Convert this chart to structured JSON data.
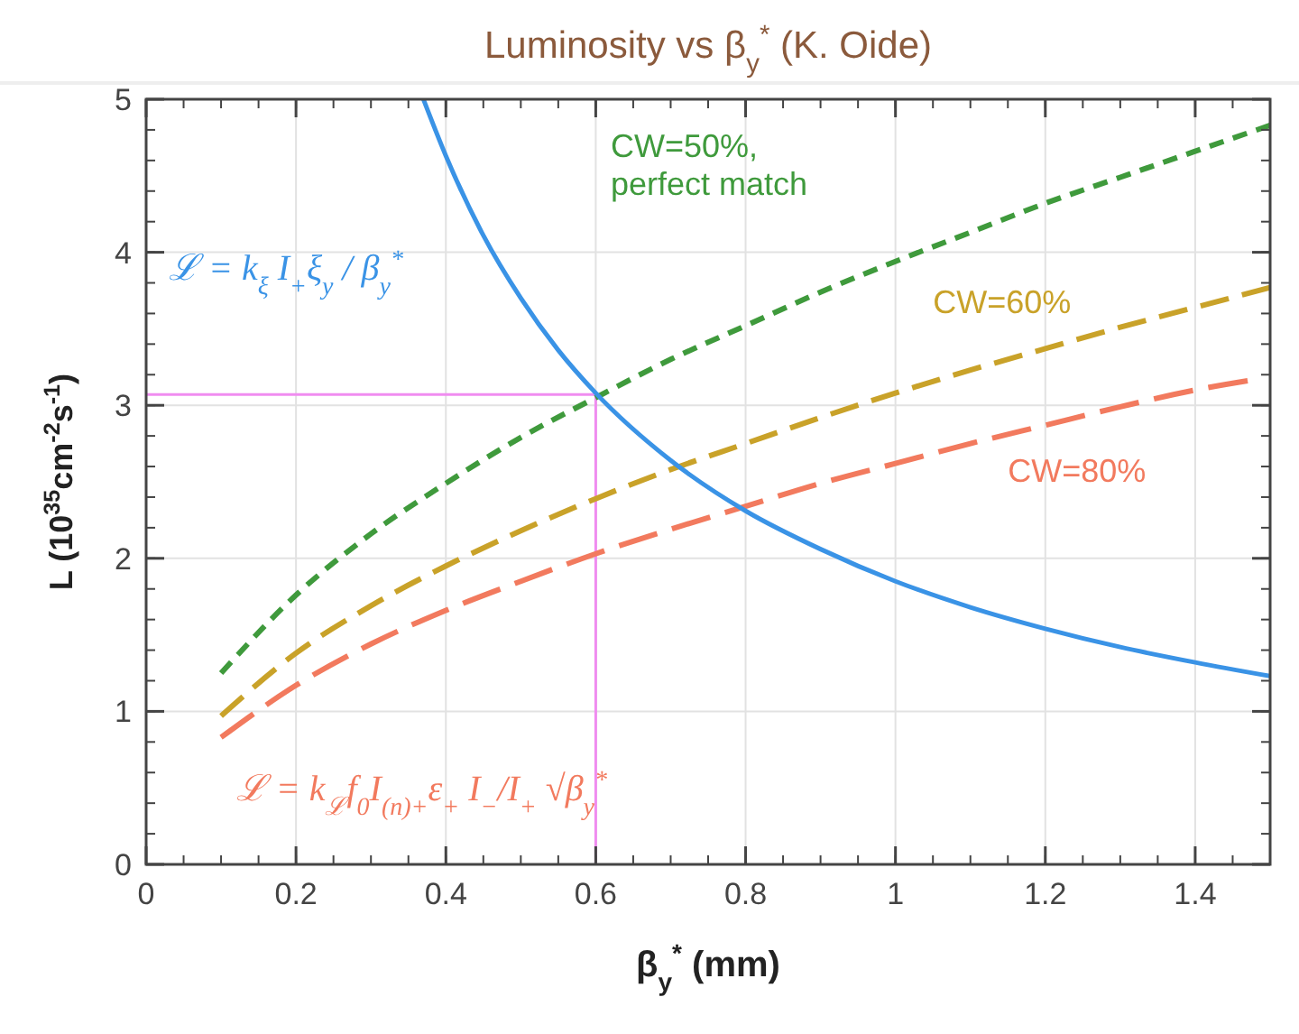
{
  "chart_data": {
    "type": "line",
    "title": "Luminosity vs β$_{y}$$^{*}$ (K. Oide)",
    "xlabel": "β$_{y}$$^{*}$ (mm)",
    "ylabel": "L (10$^{35}$cm$^{-2}$s$^{-1}$)",
    "xlim": [
      0,
      1.5
    ],
    "ylim": [
      0,
      5
    ],
    "xticks": [
      0,
      0.2,
      0.4,
      0.6,
      0.8,
      1,
      1.2,
      1.4
    ],
    "yticks": [
      0,
      1,
      2,
      3,
      4,
      5
    ],
    "grid": true,
    "marker": "none",
    "series": [
      {
        "name": "CW=50%, perfect match",
        "color": "#3f9a3c",
        "line_style": "dashed",
        "x": [
          0.1,
          0.2,
          0.3,
          0.4,
          0.5,
          0.6,
          0.7,
          0.8,
          0.9,
          1.0,
          1.1,
          1.2,
          1.3,
          1.4,
          1.5
        ],
        "values": [
          1.25,
          1.76,
          2.16,
          2.49,
          2.79,
          3.05,
          3.3,
          3.52,
          3.74,
          3.94,
          4.13,
          4.32,
          4.49,
          4.66,
          4.83
        ]
      },
      {
        "name": "CW=60%",
        "color": "#c9a229",
        "line_style": "dashed",
        "x": [
          0.1,
          0.2,
          0.3,
          0.4,
          0.5,
          0.6,
          0.7,
          0.8,
          0.9,
          1.0,
          1.1,
          1.2,
          1.3,
          1.4,
          1.5
        ],
        "values": [
          0.97,
          1.38,
          1.69,
          1.95,
          2.18,
          2.39,
          2.58,
          2.75,
          2.92,
          3.08,
          3.23,
          3.37,
          3.51,
          3.64,
          3.77
        ]
      },
      {
        "name": "CW=80%",
        "color": "#f27a5e",
        "line_style": "dashed",
        "x": [
          0.1,
          0.2,
          0.3,
          0.4,
          0.5,
          0.6,
          0.7,
          0.8,
          0.9,
          1.0,
          1.1,
          1.2,
          1.3,
          1.4,
          1.47
        ],
        "values": [
          0.83,
          1.17,
          1.44,
          1.66,
          1.85,
          2.03,
          2.19,
          2.34,
          2.49,
          2.62,
          2.75,
          2.87,
          2.99,
          3.1,
          3.16
        ]
      },
      {
        "color": "#3a93e6",
        "line_style": "solid",
        "x": [
          0.37,
          0.4,
          0.45,
          0.5,
          0.55,
          0.6,
          0.7,
          0.8,
          0.9,
          1.0,
          1.1,
          1.2,
          1.3,
          1.4,
          1.5
        ],
        "values": [
          5.0,
          4.63,
          4.11,
          3.7,
          3.36,
          3.08,
          2.64,
          2.31,
          2.06,
          1.85,
          1.68,
          1.54,
          1.42,
          1.32,
          1.23
        ]
      }
    ],
    "ref_lines": [
      {
        "axis": "x",
        "value": 0.6,
        "color": "#f08cf0"
      },
      {
        "axis": "y",
        "value": 3.07,
        "color": "#f08cf0"
      }
    ],
    "annotations": [
      "ℒ = k$_{ξ}$ I$_{+}$ξ$_{y}$ / β$_{y}$$^{*}$",
      "ℒ = k$_{ℒ}$f$_{0}$I$_{(n)+}$ε$_{+}$ I$_{−}$/I$_{+}$ √β$_{y}$$^{*}$"
    ]
  }
}
